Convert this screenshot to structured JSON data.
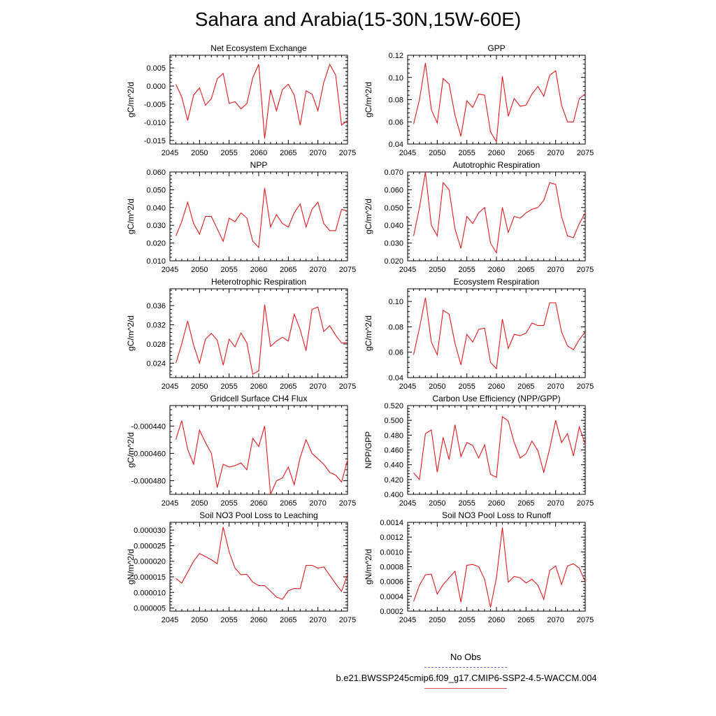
{
  "title": "Sahara and Arabia(15-30N,15W-60E)",
  "legend": [
    {
      "label": "No Obs",
      "color": "#6a6ad8",
      "style": "dashed"
    },
    {
      "label": "b.e21.BWSSP245cmip6.f09_g17.CMIP6-SSP2-4.5-WACCM.004",
      "color": "#e05050",
      "style": "solid"
    }
  ],
  "line_color": "#e41a1c",
  "chart_data": [
    {
      "type": "line",
      "title": "Net Ecosystem Exchange",
      "ylabel": "gC/m^2/d",
      "xlim": [
        2045,
        2075
      ],
      "ylim": [
        -0.016,
        0.0085
      ],
      "xticks": [
        2045,
        2050,
        2055,
        2060,
        2065,
        2070,
        2075
      ],
      "xtick_labels": [
        "2045",
        "2050",
        "2055",
        "2060",
        "2065",
        "2070",
        "2075"
      ],
      "yticks": [
        -0.015,
        -0.01,
        -0.005,
        0.0,
        0.005
      ],
      "ytick_labels": [
        "-0.015",
        "-0.010",
        "-0.005",
        "0.000",
        "0.005"
      ],
      "x": [
        2046,
        2047,
        2048,
        2049,
        2050,
        2051,
        2052,
        2053,
        2054,
        2055,
        2056,
        2057,
        2058,
        2059,
        2060,
        2061,
        2062,
        2063,
        2064,
        2065,
        2066,
        2067,
        2068,
        2069,
        2070,
        2071,
        2072,
        2073,
        2074,
        2075
      ],
      "y": [
        0.0005,
        -0.003,
        -0.0095,
        -0.0025,
        -0.0005,
        -0.0053,
        -0.0035,
        0.002,
        0.0035,
        -0.0048,
        -0.0043,
        -0.0063,
        -0.0048,
        0.0023,
        0.006,
        -0.0145,
        -0.001,
        -0.0068,
        -0.001,
        0.0005,
        -0.0025,
        -0.0108,
        -0.0013,
        -0.0022,
        -0.0068,
        0.001,
        0.006,
        0.003,
        -0.0108,
        -0.0095
      ]
    },
    {
      "type": "line",
      "title": "GPP",
      "ylabel": "gC/m^2/d",
      "xlim": [
        2045,
        2075
      ],
      "ylim": [
        0.04,
        0.12
      ],
      "xticks": [
        2045,
        2050,
        2055,
        2060,
        2065,
        2070,
        2075
      ],
      "xtick_labels": [
        "2045",
        "2050",
        "2055",
        "2060",
        "2065",
        "2070",
        "2075"
      ],
      "yticks": [
        0.04,
        0.06,
        0.08,
        0.1,
        0.12
      ],
      "ytick_labels": [
        "0.04",
        "0.06",
        "0.08",
        "0.10",
        "0.12"
      ],
      "x": [
        2046,
        2047,
        2048,
        2049,
        2050,
        2051,
        2052,
        2053,
        2054,
        2055,
        2056,
        2057,
        2058,
        2059,
        2060,
        2061,
        2062,
        2063,
        2064,
        2065,
        2066,
        2067,
        2068,
        2069,
        2070,
        2071,
        2072,
        2073,
        2074,
        2075
      ],
      "y": [
        0.058,
        0.08,
        0.113,
        0.071,
        0.059,
        0.099,
        0.094,
        0.066,
        0.047,
        0.079,
        0.073,
        0.085,
        0.084,
        0.051,
        0.042,
        0.101,
        0.065,
        0.081,
        0.074,
        0.075,
        0.085,
        0.092,
        0.083,
        0.102,
        0.106,
        0.075,
        0.06,
        0.06,
        0.081,
        0.085
      ]
    },
    {
      "type": "line",
      "title": "NPP",
      "ylabel": "gC/m^2/d",
      "xlim": [
        2045,
        2075
      ],
      "ylim": [
        0.01,
        0.06
      ],
      "xticks": [
        2045,
        2050,
        2055,
        2060,
        2065,
        2070,
        2075
      ],
      "xtick_labels": [
        "2045",
        "2050",
        "2055",
        "2060",
        "2065",
        "2070",
        "2075"
      ],
      "yticks": [
        0.01,
        0.02,
        0.03,
        0.04,
        0.05,
        0.06
      ],
      "ytick_labels": [
        "0.010",
        "0.020",
        "0.030",
        "0.040",
        "0.050",
        "0.060"
      ],
      "x": [
        2046,
        2047,
        2048,
        2049,
        2050,
        2051,
        2052,
        2053,
        2054,
        2055,
        2056,
        2057,
        2058,
        2059,
        2060,
        2061,
        2062,
        2063,
        2064,
        2065,
        2066,
        2067,
        2068,
        2069,
        2070,
        2071,
        2072,
        2073,
        2074,
        2075
      ],
      "y": [
        0.024,
        0.032,
        0.043,
        0.031,
        0.025,
        0.035,
        0.035,
        0.028,
        0.021,
        0.034,
        0.032,
        0.037,
        0.034,
        0.021,
        0.0175,
        0.051,
        0.029,
        0.036,
        0.031,
        0.029,
        0.037,
        0.042,
        0.029,
        0.039,
        0.043,
        0.031,
        0.027,
        0.027,
        0.039,
        0.038
      ]
    },
    {
      "type": "line",
      "title": "Autotrophic Respiration",
      "ylabel": "gC/m^2/d",
      "xlim": [
        2045,
        2075
      ],
      "ylim": [
        0.02,
        0.07
      ],
      "xticks": [
        2045,
        2050,
        2055,
        2060,
        2065,
        2070,
        2075
      ],
      "xtick_labels": [
        "2045",
        "2050",
        "2055",
        "2060",
        "2065",
        "2070",
        "2075"
      ],
      "yticks": [
        0.02,
        0.03,
        0.04,
        0.05,
        0.06,
        0.07
      ],
      "ytick_labels": [
        "0.020",
        "0.030",
        "0.040",
        "0.050",
        "0.060",
        "0.070"
      ],
      "x": [
        2046,
        2047,
        2048,
        2049,
        2050,
        2051,
        2052,
        2053,
        2054,
        2055,
        2056,
        2057,
        2058,
        2059,
        2060,
        2061,
        2062,
        2063,
        2064,
        2065,
        2066,
        2067,
        2068,
        2069,
        2070,
        2071,
        2072,
        2073,
        2074,
        2075
      ],
      "y": [
        0.034,
        0.05,
        0.07,
        0.04,
        0.034,
        0.064,
        0.06,
        0.038,
        0.027,
        0.045,
        0.041,
        0.047,
        0.05,
        0.03,
        0.0245,
        0.05,
        0.036,
        0.045,
        0.044,
        0.047,
        0.049,
        0.05,
        0.054,
        0.064,
        0.063,
        0.045,
        0.034,
        0.033,
        0.041,
        0.047
      ]
    },
    {
      "type": "line",
      "title": "Heterotrophic Respiration",
      "ylabel": "gC/m^2/d",
      "xlim": [
        2045,
        2075
      ],
      "ylim": [
        0.021,
        0.0395
      ],
      "xticks": [
        2045,
        2050,
        2055,
        2060,
        2065,
        2070,
        2075
      ],
      "xtick_labels": [
        "2045",
        "2050",
        "2055",
        "2060",
        "2065",
        "2070",
        "2075"
      ],
      "yticks": [
        0.024,
        0.028,
        0.032,
        0.036
      ],
      "ytick_labels": [
        "0.024",
        "0.028",
        "0.032",
        "0.036"
      ],
      "x": [
        2046,
        2047,
        2048,
        2049,
        2050,
        2051,
        2052,
        2053,
        2054,
        2055,
        2056,
        2057,
        2058,
        2059,
        2060,
        2061,
        2062,
        2063,
        2064,
        2065,
        2066,
        2067,
        2068,
        2069,
        2070,
        2071,
        2072,
        2073,
        2074,
        2075
      ],
      "y": [
        0.024,
        0.028,
        0.0328,
        0.0278,
        0.024,
        0.029,
        0.0302,
        0.0288,
        0.0236,
        0.029,
        0.0274,
        0.0303,
        0.0282,
        0.0217,
        0.0224,
        0.0362,
        0.0275,
        0.0286,
        0.0294,
        0.0286,
        0.0342,
        0.031,
        0.0266,
        0.0352,
        0.0357,
        0.0306,
        0.0318,
        0.0298,
        0.0282,
        0.0283
      ]
    },
    {
      "type": "line",
      "title": "Ecosystem Respiration",
      "ylabel": "gC/m^2/d",
      "xlim": [
        2045,
        2075
      ],
      "ylim": [
        0.04,
        0.11
      ],
      "xticks": [
        2045,
        2050,
        2055,
        2060,
        2065,
        2070,
        2075
      ],
      "xtick_labels": [
        "2045",
        "2050",
        "2055",
        "2060",
        "2065",
        "2070",
        "2075"
      ],
      "yticks": [
        0.04,
        0.06,
        0.08,
        0.1
      ],
      "ytick_labels": [
        "0.04",
        "0.06",
        "0.08",
        "0.10"
      ],
      "x": [
        2046,
        2047,
        2048,
        2049,
        2050,
        2051,
        2052,
        2053,
        2054,
        2055,
        2056,
        2057,
        2058,
        2059,
        2060,
        2061,
        2062,
        2063,
        2064,
        2065,
        2066,
        2067,
        2068,
        2069,
        2070,
        2071,
        2072,
        2073,
        2074,
        2075
      ],
      "y": [
        0.058,
        0.079,
        0.103,
        0.068,
        0.058,
        0.093,
        0.09,
        0.067,
        0.05,
        0.074,
        0.068,
        0.078,
        0.079,
        0.052,
        0.047,
        0.086,
        0.063,
        0.074,
        0.073,
        0.075,
        0.083,
        0.081,
        0.081,
        0.099,
        0.099,
        0.076,
        0.065,
        0.062,
        0.07,
        0.076
      ]
    },
    {
      "type": "line",
      "title": "Gridcell Surface CH4 Flux",
      "ylabel": "gC/m^2/d",
      "xlim": [
        2045,
        2075
      ],
      "ylim": [
        -0.00049,
        -0.000425
      ],
      "xticks": [
        2045,
        2050,
        2055,
        2060,
        2065,
        2070,
        2075
      ],
      "xtick_labels": [
        "2045",
        "2050",
        "2055",
        "2060",
        "2065",
        "2070",
        "2075"
      ],
      "yticks": [
        -0.00048,
        -0.00046,
        -0.00044
      ],
      "ytick_labels": [
        "-0.000480",
        "-0.000460",
        "-0.000440"
      ],
      "x": [
        2046,
        2047,
        2048,
        2049,
        2050,
        2051,
        2052,
        2053,
        2054,
        2055,
        2056,
        2057,
        2058,
        2059,
        2060,
        2061,
        2062,
        2063,
        2064,
        2065,
        2066,
        2067,
        2068,
        2069,
        2070,
        2071,
        2072,
        2073,
        2074,
        2075
      ],
      "y": [
        -0.00045,
        -0.000436,
        -0.000457,
        -0.000468,
        -0.000443,
        -0.000452,
        -0.00046,
        -0.000485,
        -0.000468,
        -0.00047,
        -0.000469,
        -0.000467,
        -0.000472,
        -0.000449,
        -0.000455,
        -0.00044,
        -0.00049,
        -0.00048,
        -0.000478,
        -0.00047,
        -0.000483,
        -0.000463,
        -0.00045,
        -0.00046,
        -0.000464,
        -0.000468,
        -0.000474,
        -0.000476,
        -0.000481,
        -0.000465
      ]
    },
    {
      "type": "line",
      "title": "Carbon Use Efficiency (NPP/GPP)",
      "ylabel": "NPP/GPP",
      "xlim": [
        2045,
        2075
      ],
      "ylim": [
        0.4,
        0.52
      ],
      "xticks": [
        2045,
        2050,
        2055,
        2060,
        2065,
        2070,
        2075
      ],
      "xtick_labels": [
        "2045",
        "2050",
        "2055",
        "2060",
        "2065",
        "2070",
        "2075"
      ],
      "yticks": [
        0.4,
        0.42,
        0.44,
        0.46,
        0.48,
        0.5,
        0.52
      ],
      "ytick_labels": [
        "0.400",
        "0.420",
        "0.440",
        "0.460",
        "0.480",
        "0.500",
        "0.520"
      ],
      "x": [
        2046,
        2047,
        2048,
        2049,
        2050,
        2051,
        2052,
        2053,
        2054,
        2055,
        2056,
        2057,
        2058,
        2059,
        2060,
        2061,
        2062,
        2063,
        2064,
        2065,
        2066,
        2067,
        2068,
        2069,
        2070,
        2071,
        2072,
        2073,
        2074,
        2075
      ],
      "y": [
        0.429,
        0.42,
        0.482,
        0.487,
        0.43,
        0.477,
        0.447,
        0.494,
        0.451,
        0.47,
        0.466,
        0.449,
        0.467,
        0.427,
        0.423,
        0.505,
        0.499,
        0.47,
        0.449,
        0.455,
        0.472,
        0.459,
        0.43,
        0.462,
        0.5,
        0.47,
        0.482,
        0.452,
        0.491,
        0.468
      ]
    },
    {
      "type": "line",
      "title": "Soil NO3 Pool Loss to Leaching",
      "ylabel": "gN/m^2/d",
      "xlim": [
        2045,
        2075
      ],
      "ylim": [
        4e-06,
        3.25e-05
      ],
      "xticks": [
        2045,
        2050,
        2055,
        2060,
        2065,
        2070,
        2075
      ],
      "xtick_labels": [
        "2045",
        "2050",
        "2055",
        "2060",
        "2065",
        "2070",
        "2075"
      ],
      "yticks": [
        5e-06,
        1e-05,
        1.5e-05,
        2e-05,
        2.5e-05,
        3e-05
      ],
      "ytick_labels": [
        "0.000005",
        "0.000010",
        "0.000015",
        "0.000020",
        "0.000025",
        "0.000030"
      ],
      "x": [
        2046,
        2047,
        2048,
        2049,
        2050,
        2051,
        2052,
        2053,
        2054,
        2055,
        2056,
        2057,
        2058,
        2059,
        2060,
        2061,
        2062,
        2063,
        2064,
        2065,
        2066,
        2067,
        2068,
        2069,
        2070,
        2071,
        2072,
        2073,
        2074,
        2075
      ],
      "y": [
        1.45e-05,
        1.3e-05,
        1.65e-05,
        2e-05,
        2.25e-05,
        2.15e-05,
        2.05e-05,
        1.92e-05,
        3.1e-05,
        2.3e-05,
        1.78e-05,
        1.57e-05,
        1.58e-05,
        1.33e-05,
        1.22e-05,
        1.22e-05,
        1.04e-05,
        8.5e-06,
        7.8e-06,
        1.05e-05,
        1.13e-05,
        1.12e-05,
        1.87e-05,
        1.87e-05,
        1.78e-05,
        1.82e-05,
        1.55e-05,
        1.28e-05,
        1.03e-05,
        1.58e-05
      ]
    },
    {
      "type": "line",
      "title": "Soil NO3 Pool Loss to Runoff",
      "ylabel": "gN/m^2/d",
      "xlim": [
        2045,
        2075
      ],
      "ylim": [
        0.0002,
        0.0014
      ],
      "xticks": [
        2045,
        2050,
        2055,
        2060,
        2065,
        2070,
        2075
      ],
      "xtick_labels": [
        "2045",
        "2050",
        "2055",
        "2060",
        "2065",
        "2070",
        "2075"
      ],
      "yticks": [
        0.0002,
        0.0004,
        0.0006,
        0.0008,
        0.001,
        0.0012,
        0.0014
      ],
      "ytick_labels": [
        "0.0002",
        "0.0004",
        "0.0006",
        "0.0008",
        "0.0010",
        "0.0012",
        "0.0014"
      ],
      "x": [
        2046,
        2047,
        2048,
        2049,
        2050,
        2051,
        2052,
        2053,
        2054,
        2055,
        2056,
        2057,
        2058,
        2059,
        2060,
        2061,
        2062,
        2063,
        2064,
        2065,
        2066,
        2067,
        2068,
        2069,
        2070,
        2071,
        2072,
        2073,
        2074,
        2075
      ],
      "y": [
        0.00033,
        0.00055,
        0.00069,
        0.0007,
        0.00043,
        0.00056,
        0.00065,
        0.00074,
        0.00032,
        0.00082,
        0.00083,
        0.0008,
        0.00063,
        0.00025,
        0.00065,
        0.00133,
        0.00059,
        0.00067,
        0.00065,
        0.00058,
        0.00063,
        0.00055,
        0.00036,
        0.00075,
        0.00081,
        0.00056,
        0.00081,
        0.00084,
        0.00078,
        0.0006
      ]
    }
  ]
}
